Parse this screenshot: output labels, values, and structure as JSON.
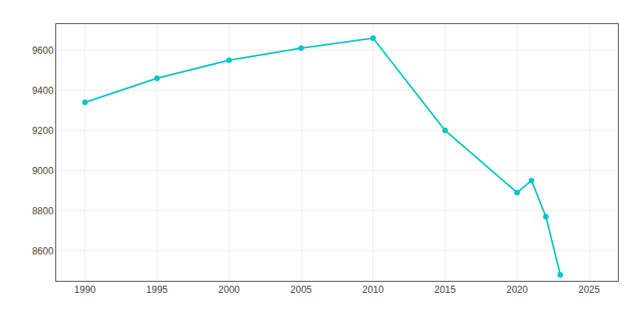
{
  "chart_data": {
    "type": "line",
    "x": [
      1990,
      1995,
      2000,
      2005,
      2010,
      2015,
      2020,
      2021,
      2022,
      2023
    ],
    "values": [
      9340,
      9460,
      9550,
      9610,
      9660,
      9200,
      8890,
      8950,
      8770,
      8480
    ],
    "color": "#00C5C5",
    "marker": "circle",
    "xlim": [
      1988,
      2027
    ],
    "ylim": [
      8450,
      9730
    ],
    "xticks": [
      1990,
      1995,
      2000,
      2005,
      2010,
      2015,
      2020,
      2025
    ],
    "yticks": [
      8600,
      8800,
      9000,
      9200,
      9400,
      9600
    ],
    "grid": true
  }
}
